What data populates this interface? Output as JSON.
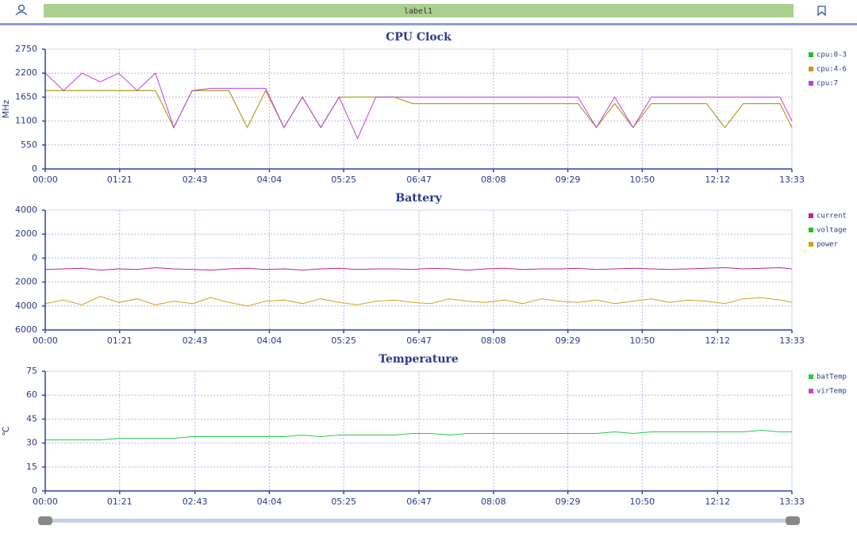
{
  "header": {
    "label": "label1"
  },
  "chart_data": [
    {
      "type": "line",
      "title": "CPU Clock",
      "y_label": "MHz",
      "x": [
        0,
        20,
        40,
        60,
        80,
        100,
        120,
        140,
        160,
        180,
        200,
        220,
        240,
        260,
        280,
        300,
        320,
        340,
        360,
        380,
        400,
        420,
        440,
        460,
        480,
        500,
        520,
        540,
        560,
        580,
        600,
        620,
        640,
        660,
        680,
        700,
        720,
        740,
        760,
        780,
        800,
        813
      ],
      "xlim": [
        0,
        813
      ],
      "xticks": [
        {
          "value": 0,
          "label": "00:00"
        },
        {
          "value": 81,
          "label": "01:21"
        },
        {
          "value": 163,
          "label": "02:43"
        },
        {
          "value": 244,
          "label": "04:04"
        },
        {
          "value": 325,
          "label": "05:25"
        },
        {
          "value": 407,
          "label": "06:47"
        },
        {
          "value": 488,
          "label": "08:08"
        },
        {
          "value": 569,
          "label": "09:29"
        },
        {
          "value": 650,
          "label": "10:50"
        },
        {
          "value": 732,
          "label": "12:12"
        },
        {
          "value": 813,
          "label": "13:33"
        }
      ],
      "ylim": [
        0,
        2750
      ],
      "yticks": [
        0,
        550,
        1100,
        1650,
        2200,
        2750
      ],
      "grid": true,
      "series": [
        {
          "name": "cpu:0-3",
          "color": "#22c022",
          "values": [
            1800,
            1800,
            1800,
            1800,
            1800,
            1800,
            1800,
            950,
            1800,
            1800,
            1800,
            950,
            1800,
            950,
            1650,
            950,
            1650,
            1650,
            1650,
            1650,
            1500,
            1500,
            1500,
            1500,
            1500,
            1500,
            1500,
            1500,
            1500,
            1500,
            950,
            1500,
            950,
            1500,
            1500,
            1500,
            1500,
            950,
            1500,
            1500,
            1500,
            950
          ]
        },
        {
          "name": "cpu:4-6",
          "color": "#c8961a",
          "values": [
            1800,
            1800,
            1800,
            1800,
            1800,
            1800,
            1800,
            950,
            1800,
            1800,
            1800,
            950,
            1800,
            950,
            1650,
            950,
            1650,
            1650,
            1650,
            1650,
            1500,
            1500,
            1500,
            1500,
            1500,
            1500,
            1500,
            1500,
            1500,
            1500,
            950,
            1500,
            950,
            1500,
            1500,
            1500,
            1500,
            950,
            1500,
            1500,
            1500,
            950
          ]
        },
        {
          "name": "cpu:7",
          "color": "#c040e0",
          "values": [
            2200,
            1800,
            2200,
            2000,
            2200,
            1800,
            2200,
            950,
            1800,
            1850,
            1850,
            1850,
            1850,
            950,
            1650,
            950,
            1650,
            700,
            1650,
            1650,
            1650,
            1650,
            1650,
            1650,
            1650,
            1650,
            1650,
            1650,
            1650,
            1650,
            950,
            1650,
            950,
            1650,
            1650,
            1650,
            1650,
            1650,
            1650,
            1650,
            1650,
            1100
          ]
        }
      ]
    },
    {
      "type": "line",
      "title": "Battery",
      "x": [
        0,
        20,
        40,
        60,
        80,
        100,
        120,
        140,
        160,
        180,
        200,
        220,
        240,
        260,
        280,
        300,
        320,
        340,
        360,
        380,
        400,
        420,
        440,
        460,
        480,
        500,
        520,
        540,
        560,
        580,
        600,
        620,
        640,
        660,
        680,
        700,
        720,
        740,
        760,
        780,
        800,
        813
      ],
      "xlim": [
        0,
        813
      ],
      "xticks": [
        {
          "value": 0,
          "label": "00:00"
        },
        {
          "value": 81,
          "label": "01:21"
        },
        {
          "value": 163,
          "label": "02:43"
        },
        {
          "value": 244,
          "label": "04:04"
        },
        {
          "value": 325,
          "label": "05:25"
        },
        {
          "value": 407,
          "label": "06:47"
        },
        {
          "value": 488,
          "label": "08:08"
        },
        {
          "value": 569,
          "label": "09:29"
        },
        {
          "value": 650,
          "label": "10:50"
        },
        {
          "value": 732,
          "label": "12:12"
        },
        {
          "value": 813,
          "label": "13:33"
        }
      ],
      "ylim": [
        -6000,
        4000
      ],
      "yticks": [
        4000,
        2000,
        0,
        {
          "value": -2000,
          "label": "2000"
        },
        {
          "value": -4000,
          "label": "4000"
        },
        {
          "value": -6000,
          "label": "6000"
        }
      ],
      "grid": true,
      "series": [
        {
          "name": "current",
          "color": "#c0209a",
          "values": [
            -950,
            -900,
            -850,
            -1000,
            -900,
            -950,
            -800,
            -900,
            -950,
            -1000,
            -900,
            -850,
            -950,
            -900,
            -1000,
            -900,
            -850,
            -950,
            -900,
            -900,
            -950,
            -850,
            -900,
            -1000,
            -900,
            -850,
            -950,
            -900,
            -900,
            -850,
            -950,
            -900,
            -850,
            -900,
            -950,
            -900,
            -850,
            -800,
            -900,
            -850,
            -800,
            -900
          ]
        },
        {
          "name": "voltage",
          "color": "#22c022",
          "values": [
            null,
            null,
            null,
            null,
            null,
            null,
            null,
            null,
            null,
            null,
            null,
            null,
            null,
            null,
            null,
            null,
            null,
            null,
            null,
            null,
            null,
            null,
            null,
            null,
            null,
            null,
            null,
            null,
            null,
            null,
            null,
            null,
            null,
            null,
            null,
            null,
            null,
            null,
            null,
            null,
            null,
            null
          ]
        },
        {
          "name": "power",
          "color": "#d4a017",
          "values": [
            -3800,
            -3500,
            -3900,
            -3200,
            -3700,
            -3400,
            -3900,
            -3600,
            -3800,
            -3300,
            -3700,
            -4000,
            -3600,
            -3500,
            -3800,
            -3400,
            -3700,
            -3900,
            -3600,
            -3500,
            -3700,
            -3800,
            -3400,
            -3600,
            -3700,
            -3500,
            -3800,
            -3400,
            -3600,
            -3700,
            -3500,
            -3800,
            -3600,
            -3400,
            -3700,
            -3500,
            -3600,
            -3800,
            -3400,
            -3300,
            -3500,
            -3700
          ]
        }
      ]
    },
    {
      "type": "line",
      "title": "Temperature",
      "y_label": "℃",
      "x": [
        0,
        20,
        40,
        60,
        80,
        100,
        120,
        140,
        160,
        180,
        200,
        220,
        240,
        260,
        280,
        300,
        320,
        340,
        360,
        380,
        400,
        420,
        440,
        460,
        480,
        500,
        520,
        540,
        560,
        580,
        600,
        620,
        640,
        660,
        680,
        700,
        720,
        740,
        760,
        780,
        800,
        813
      ],
      "xlim": [
        0,
        813
      ],
      "xticks": [
        {
          "value": 0,
          "label": "00:00"
        },
        {
          "value": 81,
          "label": "01:21"
        },
        {
          "value": 163,
          "label": "02:43"
        },
        {
          "value": 244,
          "label": "04:04"
        },
        {
          "value": 325,
          "label": "05:25"
        },
        {
          "value": 407,
          "label": "06:47"
        },
        {
          "value": 488,
          "label": "08:08"
        },
        {
          "value": 569,
          "label": "09:29"
        },
        {
          "value": 650,
          "label": "10:50"
        },
        {
          "value": 732,
          "label": "12:12"
        },
        {
          "value": 813,
          "label": "13:33"
        }
      ],
      "ylim": [
        0,
        75
      ],
      "yticks": [
        0,
        15,
        30,
        45,
        60,
        75
      ],
      "grid": true,
      "series": [
        {
          "name": "batTemp",
          "color": "#22cc44",
          "values": [
            32,
            32,
            32,
            32,
            33,
            33,
            33,
            33,
            34,
            34,
            34,
            34,
            34,
            34,
            35,
            34,
            35,
            35,
            35,
            35,
            36,
            36,
            35,
            36,
            36,
            36,
            36,
            36,
            36,
            36,
            36,
            37,
            36,
            37,
            37,
            37,
            37,
            37,
            37,
            38,
            37,
            37
          ]
        },
        {
          "name": "virTemp",
          "color": "#cc44cc",
          "values": [
            null,
            null,
            null,
            null,
            null,
            null,
            null,
            null,
            null,
            null,
            null,
            null,
            null,
            null,
            null,
            null,
            null,
            null,
            null,
            null,
            null,
            null,
            null,
            null,
            null,
            null,
            null,
            null,
            null,
            null,
            null,
            null,
            null,
            null,
            null,
            null,
            null,
            null,
            null,
            null,
            null,
            null
          ]
        }
      ]
    }
  ]
}
